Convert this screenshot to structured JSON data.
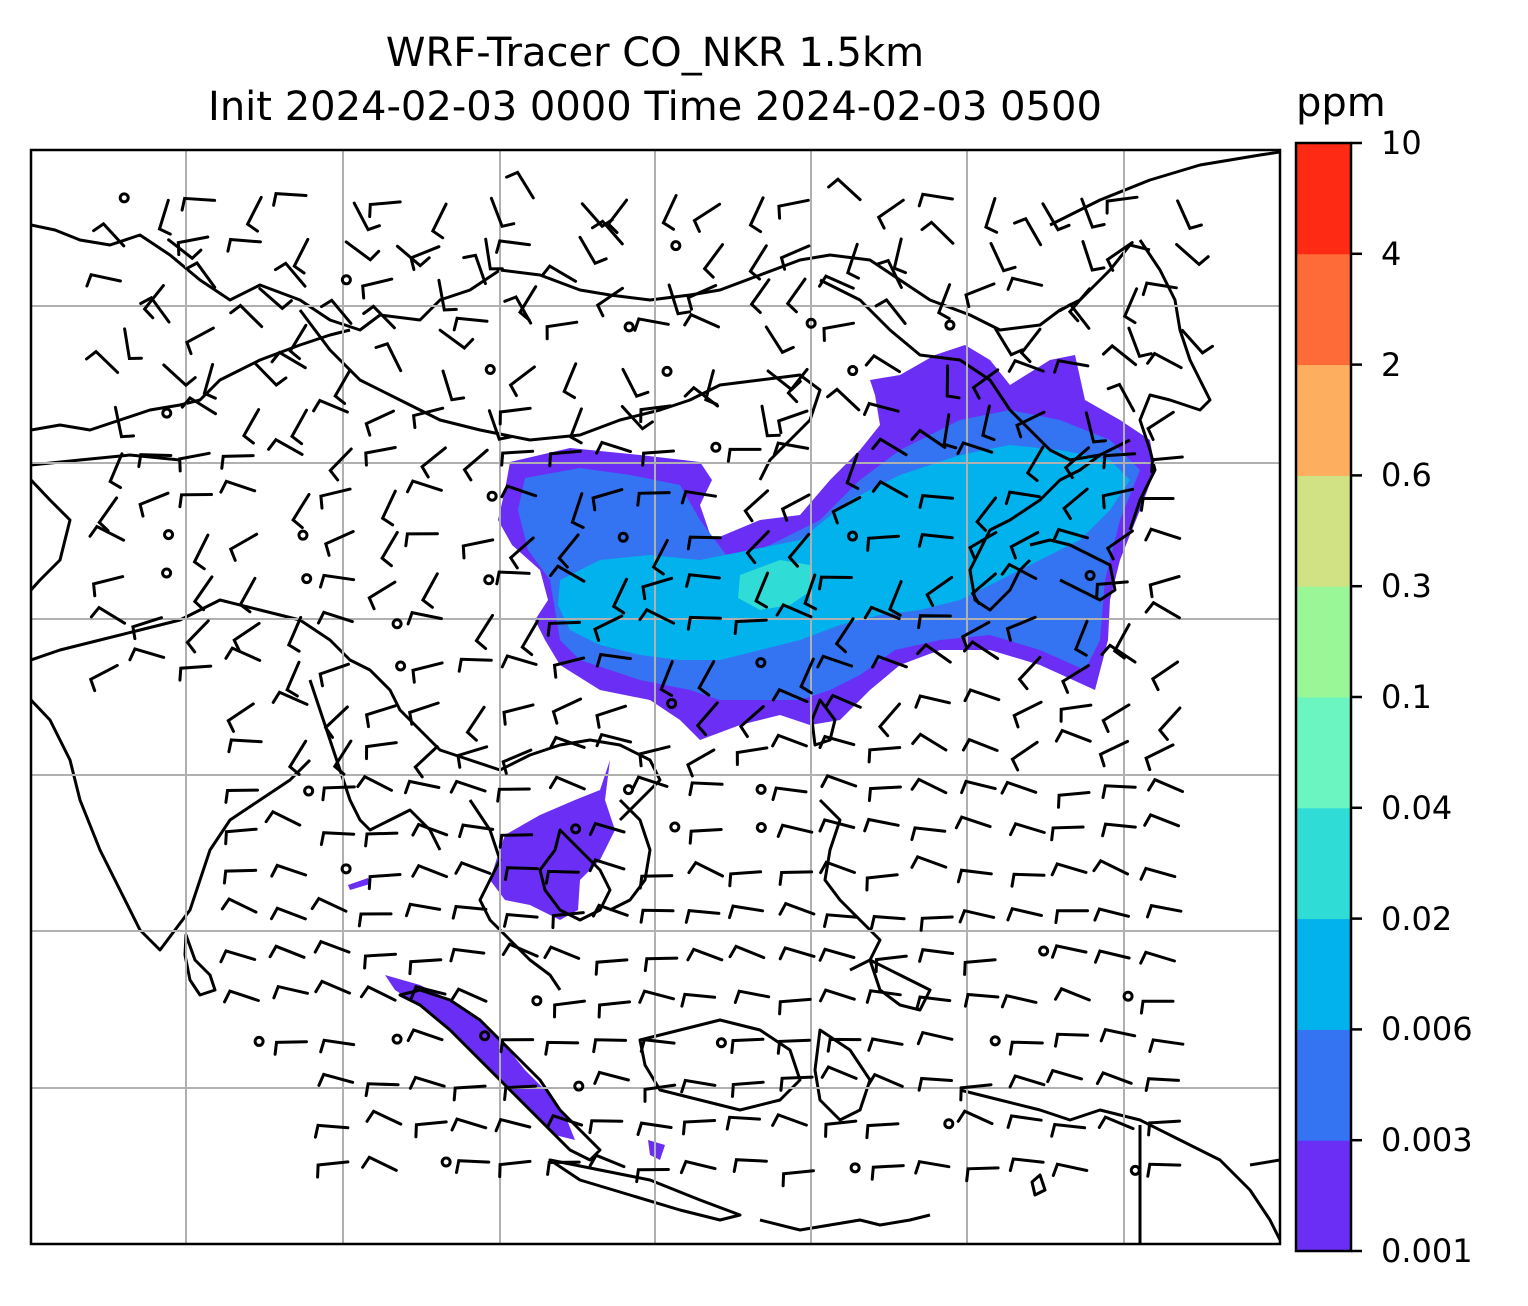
{
  "title": {
    "line1": "WRF-Tracer CO_NKR 1.5km",
    "line2": "Init 2024-02-03 0000 Time 2024-02-03 0500"
  },
  "colorbar": {
    "unit": "ppm",
    "levels": [
      "0.001",
      "0.003",
      "0.006",
      "0.02",
      "0.04",
      "0.1",
      "0.3",
      "0.6",
      "2",
      "4",
      "10"
    ],
    "colors": [
      "#6a2ef5",
      "#3474f2",
      "#01b2ec",
      "#2fdcd6",
      "#6bf6c1",
      "#9af797",
      "#d1e285",
      "#fdae5e",
      "#ff6b38",
      "#ff2a13"
    ]
  },
  "map": {
    "grid": "on",
    "coastline_color": "#000000",
    "grid_color": "#b0b0b0",
    "tracer_field": "CO_NKR",
    "level": "1.5km",
    "wind": "barbs"
  }
}
